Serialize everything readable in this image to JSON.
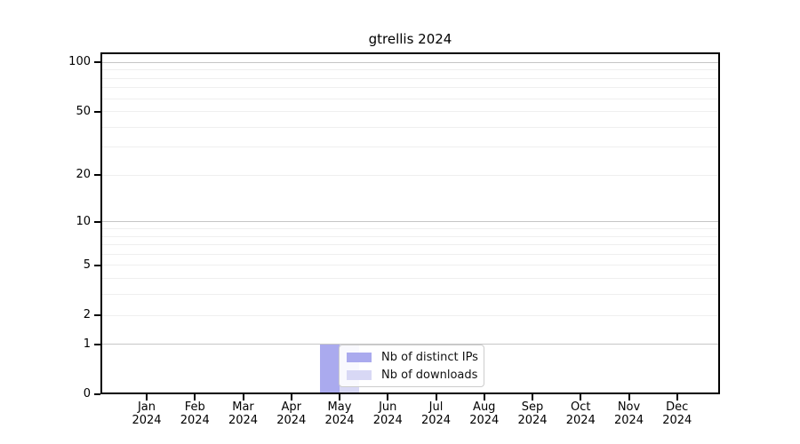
{
  "chart_data": {
    "type": "bar",
    "title": "gtrellis 2024",
    "x_months": [
      "Jan",
      "Feb",
      "Mar",
      "Apr",
      "May",
      "Jun",
      "Jul",
      "Aug",
      "Sep",
      "Oct",
      "Nov",
      "Dec"
    ],
    "x_year_label": "2024",
    "categories": [
      "Jan 2024",
      "Feb 2024",
      "Mar 2024",
      "Apr 2024",
      "May 2024",
      "Jun 2024",
      "Jul 2024",
      "Aug 2024",
      "Sep 2024",
      "Oct 2024",
      "Nov 2024",
      "Dec 2024"
    ],
    "series": [
      {
        "name": "Nb of distinct IPs",
        "color": "#aaaaee",
        "values": [
          0,
          0,
          0,
          0,
          1,
          0,
          0,
          0,
          0,
          0,
          0,
          0
        ]
      },
      {
        "name": "Nb of downloads",
        "color": "#d8d8f5",
        "values": [
          0,
          0,
          0,
          0,
          1,
          0,
          0,
          0,
          0,
          0,
          0,
          0
        ]
      }
    ],
    "y_axis": {
      "scale": "log1p",
      "tick_values": [
        100,
        50,
        20,
        10,
        5,
        2,
        1,
        0
      ],
      "tick_labels": [
        "100",
        "50",
        "20",
        "10",
        "5",
        "2",
        "1",
        "0"
      ],
      "major_gridlines": [
        1,
        10,
        100
      ],
      "minor_gridlines": [
        2,
        3,
        4,
        5,
        6,
        7,
        8,
        9,
        20,
        30,
        40,
        50,
        60,
        70,
        80,
        90
      ],
      "ylim": [
        0,
        115
      ]
    },
    "legend": {
      "position": "lower center"
    },
    "grid": true,
    "colors": {
      "grid_minor": "#efefef",
      "grid_major": "#c6c6c6",
      "axis": "#000000",
      "background": "#ffffff",
      "text": "#000000"
    }
  }
}
